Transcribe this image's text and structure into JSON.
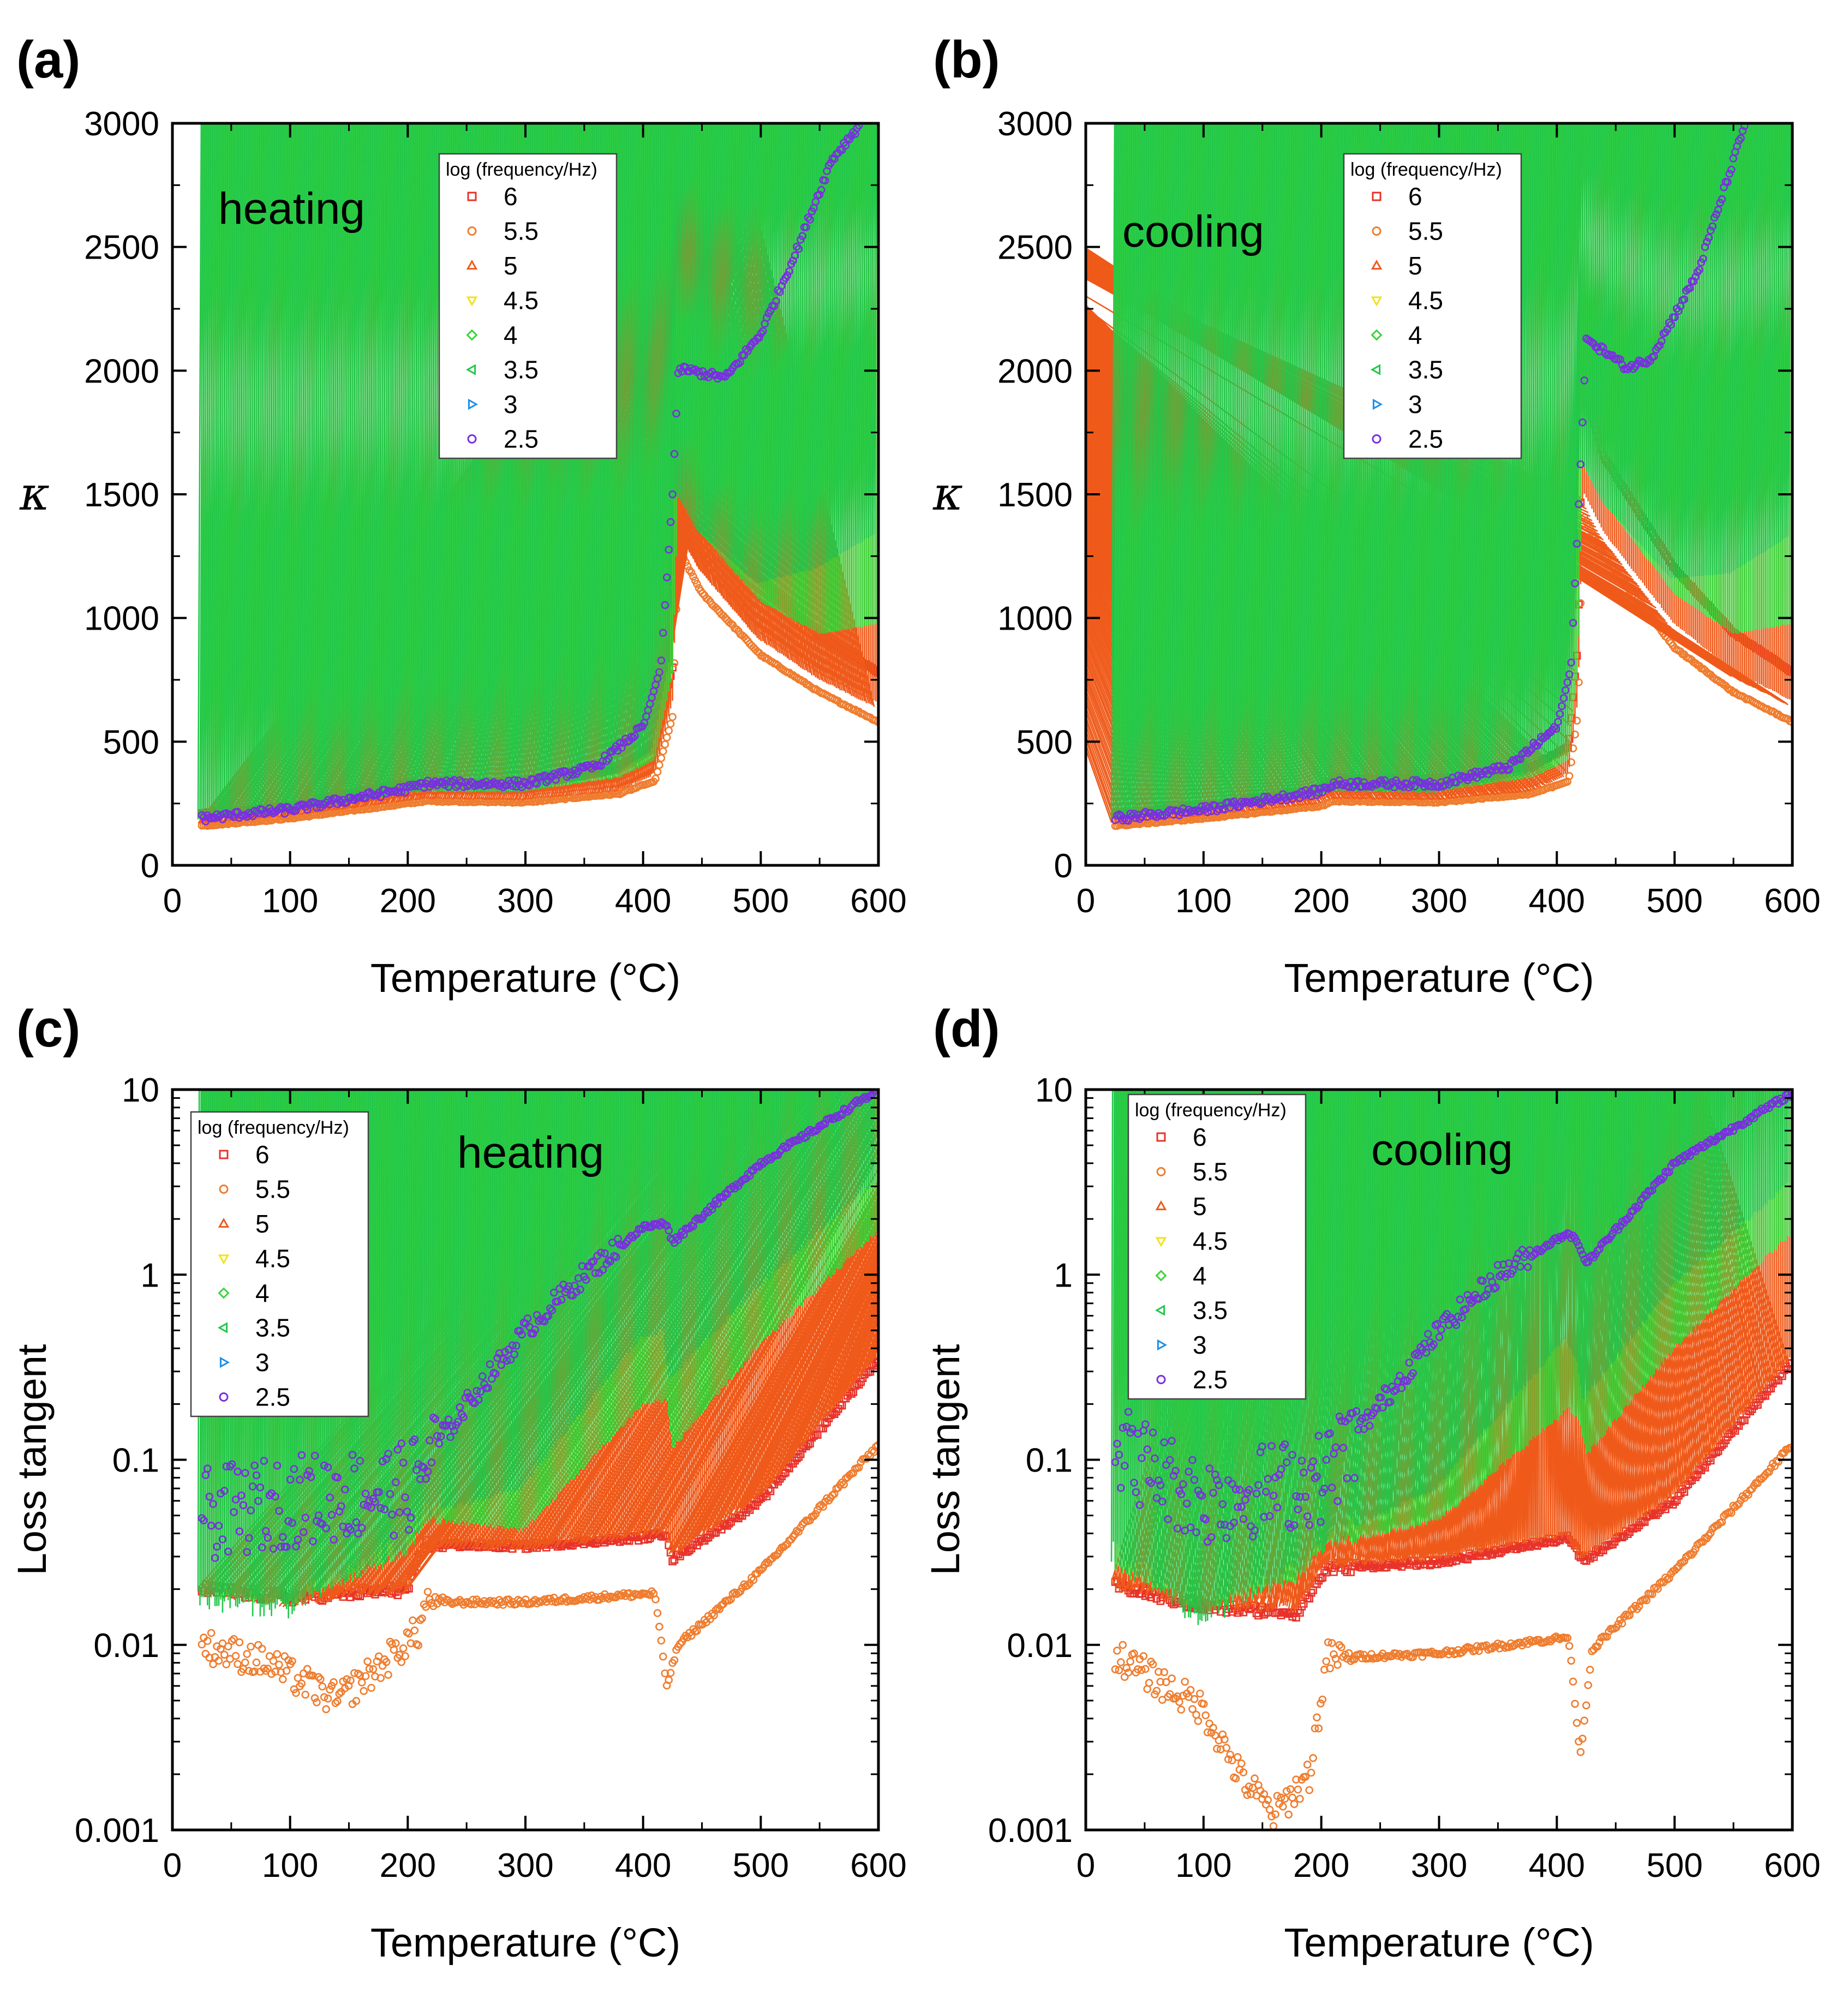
{
  "legend": {
    "title": "log (frequency/Hz)",
    "entries": [
      {
        "label": "6",
        "color": "#e8332a",
        "marker": "square"
      },
      {
        "label": "5.5",
        "color": "#ef7d2f",
        "marker": "circle"
      },
      {
        "label": "5",
        "color": "#ef5a1a",
        "marker": "triangle-up"
      },
      {
        "label": "4.5",
        "color": "#f2e21a",
        "marker": "triangle-down"
      },
      {
        "label": "4",
        "color": "#3ad43a",
        "marker": "diamond"
      },
      {
        "label": "3.5",
        "color": "#22c74a",
        "marker": "triangle-left"
      },
      {
        "label": "3",
        "color": "#1b8fe8",
        "marker": "triangle-right"
      },
      {
        "label": "2.5",
        "color": "#7a2fe0",
        "marker": "circle"
      }
    ]
  },
  "chart_data": [
    {
      "id": "a",
      "panel_label": "(a)",
      "type": "scatter",
      "annotation": "heating",
      "xlabel": "Temperature (°C)",
      "ylabel": "κ",
      "yscale": "linear",
      "xlim": [
        0,
        600
      ],
      "ylim": [
        0,
        3000
      ],
      "xticks": [
        "0",
        "100",
        "200",
        "300",
        "400",
        "500",
        "600"
      ],
      "yticks": [
        "0",
        "500",
        "1000",
        "1500",
        "2000",
        "2500",
        "3000"
      ],
      "series": [
        {
          "name": "6",
          "x": [
            25,
            100,
            200,
            215,
            300,
            380,
            410,
            425,
            430,
            450,
            500,
            550,
            600
          ],
          "y": [
            210,
            240,
            340,
            330,
            340,
            400,
            480,
            800,
            1730,
            1500,
            1150,
            930,
            780
          ]
        },
        {
          "name": "5.5",
          "x": [
            25,
            100,
            200,
            215,
            300,
            380,
            410,
            425,
            430,
            450,
            500,
            550,
            600
          ],
          "y": [
            160,
            190,
            250,
            260,
            255,
            290,
            340,
            600,
            1280,
            1100,
            850,
            700,
            580
          ]
        },
        {
          "name": "5",
          "x": [
            25,
            100,
            200,
            215,
            300,
            380,
            410,
            425,
            430,
            450,
            500,
            550,
            600
          ],
          "y": [
            170,
            200,
            260,
            270,
            265,
            300,
            360,
            650,
            1380,
            1200,
            920,
            760,
            640
          ]
        },
        {
          "name": "4.5",
          "x": [
            25,
            100,
            200,
            215,
            300,
            380,
            410,
            425,
            430,
            450,
            500,
            550,
            600
          ],
          "y": [
            175,
            205,
            270,
            280,
            275,
            320,
            380,
            700,
            1440,
            1280,
            1000,
            840,
            740
          ]
        },
        {
          "name": "4",
          "x": [
            25,
            100,
            200,
            215,
            300,
            380,
            410,
            425,
            430,
            450,
            500,
            550,
            600
          ],
          "y": [
            180,
            210,
            280,
            290,
            285,
            340,
            410,
            760,
            1500,
            1320,
            1050,
            920,
            960
          ]
        },
        {
          "name": "3.5",
          "x": [
            25,
            100,
            200,
            215,
            300,
            380,
            410,
            425,
            430,
            450,
            500,
            550,
            600
          ],
          "y": [
            185,
            215,
            290,
            300,
            295,
            370,
            460,
            820,
            1510,
            1350,
            1140,
            1200,
            1340
          ]
        },
        {
          "name": "3",
          "x": [
            25,
            100,
            200,
            215,
            300,
            380,
            410,
            425,
            430,
            450,
            480,
            520,
            560,
            600
          ],
          "y": [
            190,
            220,
            300,
            310,
            305,
            420,
            560,
            900,
            1660,
            1520,
            1460,
            1560,
            1780,
            2070
          ]
        },
        {
          "name": "2.5",
          "x": [
            25,
            100,
            200,
            215,
            300,
            360,
            400,
            415,
            425,
            430,
            450,
            470,
            500,
            530,
            560,
            585
          ],
          "y": [
            190,
            225,
            310,
            330,
            330,
            400,
            560,
            800,
            1500,
            2010,
            1990,
            1970,
            2150,
            2480,
            2850,
            3000
          ]
        }
      ]
    },
    {
      "id": "b",
      "panel_label": "(b)",
      "type": "scatter",
      "annotation": "cooling",
      "xlabel": "Temperature (°C)",
      "ylabel": "κ",
      "yscale": "linear",
      "xlim": [
        0,
        600
      ],
      "ylim": [
        0,
        3000
      ],
      "xticks": [
        "0",
        "100",
        "200",
        "300",
        "400",
        "500",
        "600"
      ],
      "yticks": [
        "0",
        "500",
        "1000",
        "1500",
        "2000",
        "2500",
        "3000"
      ],
      "series": [
        {
          "name": "6",
          "x": [
            25,
            100,
            200,
            210,
            300,
            380,
            410,
            418,
            422,
            440,
            500,
            550,
            600
          ],
          "y": [
            210,
            240,
            310,
            350,
            350,
            400,
            480,
            900,
            1930,
            1650,
            1200,
            940,
            780
          ]
        },
        {
          "name": "5.5",
          "x": [
            25,
            100,
            200,
            210,
            300,
            380,
            410,
            418,
            422,
            440,
            500,
            550,
            600
          ],
          "y": [
            160,
            190,
            240,
            260,
            255,
            290,
            340,
            620,
            1420,
            1250,
            880,
            700,
            580
          ]
        },
        {
          "name": "5",
          "x": [
            25,
            100,
            200,
            210,
            300,
            380,
            410,
            418,
            422,
            440,
            500,
            550,
            600
          ],
          "y": [
            170,
            200,
            250,
            270,
            265,
            300,
            360,
            660,
            1500,
            1330,
            960,
            770,
            650
          ]
        },
        {
          "name": "4.5",
          "x": [
            25,
            100,
            200,
            210,
            300,
            380,
            410,
            418,
            422,
            440,
            500,
            550,
            600
          ],
          "y": [
            175,
            205,
            260,
            280,
            275,
            320,
            380,
            720,
            1560,
            1400,
            1030,
            850,
            740
          ]
        },
        {
          "name": "4",
          "x": [
            25,
            100,
            200,
            210,
            300,
            380,
            410,
            418,
            422,
            440,
            500,
            550,
            600
          ],
          "y": [
            180,
            210,
            270,
            290,
            285,
            340,
            410,
            780,
            1640,
            1450,
            1080,
            920,
            960
          ]
        },
        {
          "name": "3.5",
          "x": [
            25,
            100,
            200,
            210,
            300,
            380,
            410,
            418,
            422,
            440,
            500,
            550,
            600
          ],
          "y": [
            185,
            215,
            280,
            300,
            295,
            370,
            460,
            840,
            1650,
            1480,
            1160,
            1180,
            1330
          ]
        },
        {
          "name": "3",
          "x": [
            25,
            100,
            200,
            210,
            300,
            380,
            410,
            418,
            422,
            440,
            480,
            520,
            560,
            600
          ],
          "y": [
            190,
            220,
            290,
            310,
            305,
            420,
            560,
            920,
            1800,
            1600,
            1490,
            1560,
            1760,
            2060
          ]
        },
        {
          "name": "2.5",
          "x": [
            25,
            100,
            200,
            210,
            300,
            360,
            400,
            412,
            420,
            425,
            440,
            460,
            480,
            520,
            560
          ],
          "y": [
            190,
            225,
            300,
            330,
            330,
            400,
            560,
            800,
            1600,
            2130,
            2080,
            2010,
            2050,
            2400,
            3000
          ]
        }
      ]
    },
    {
      "id": "c",
      "panel_label": "(c)",
      "type": "scatter",
      "annotation": "heating",
      "xlabel": "Temperature (°C)",
      "ylabel": "Loss tangent",
      "yscale": "log",
      "xlim": [
        0,
        600
      ],
      "ylim": [
        0.001,
        10
      ],
      "xticks": [
        "0",
        "100",
        "200",
        "300",
        "400",
        "500",
        "600"
      ],
      "yticks": [
        "0.001",
        "0.01",
        "0.1",
        "1",
        "10"
      ],
      "series": [
        {
          "name": "6",
          "x": [
            25,
            100,
            200,
            215,
            300,
            400,
            420,
            425,
            500,
            600
          ],
          "y": [
            0.02,
            0.018,
            0.02,
            0.035,
            0.034,
            0.038,
            0.04,
            0.029,
            0.06,
            0.35
          ]
        },
        {
          "name": "5.5",
          "x": [
            25,
            80,
            140,
            180,
            210,
            215,
            300,
            410,
            420,
            430,
            500,
            600
          ],
          "y": [
            0.01,
            0.008,
            0.005,
            0.008,
            0.012,
            0.017,
            0.017,
            0.019,
            0.006,
            0.01,
            0.025,
            0.12
          ]
        },
        {
          "name": "5",
          "x": [
            25,
            100,
            200,
            215,
            300,
            400,
            420,
            425,
            500,
            600
          ],
          "y": [
            0.02,
            0.017,
            0.02,
            0.034,
            0.033,
            0.039,
            0.04,
            0.03,
            0.062,
            0.36
          ]
        },
        {
          "name": "4.5",
          "x": [
            25,
            100,
            200,
            215,
            300,
            400,
            420,
            425,
            500,
            600
          ],
          "y": [
            0.019,
            0.016,
            0.025,
            0.04,
            0.034,
            0.08,
            0.085,
            0.05,
            0.15,
            0.83
          ]
        },
        {
          "name": "4",
          "x": [
            25,
            100,
            200,
            215,
            300,
            400,
            420,
            425,
            500,
            600
          ],
          "y": [
            0.018,
            0.016,
            0.03,
            0.045,
            0.04,
            0.19,
            0.2,
            0.11,
            0.4,
            1.65
          ]
        },
        {
          "name": "3.5",
          "x": [
            25,
            100,
            200,
            215,
            300,
            400,
            420,
            425,
            500,
            600
          ],
          "y": [
            0.018,
            0.016,
            0.035,
            0.05,
            0.07,
            0.45,
            0.5,
            0.27,
            0.85,
            3.2
          ]
        },
        {
          "name": "3",
          "x": [
            25,
            100,
            200,
            250,
            300,
            350,
            400,
            420,
            425,
            500,
            600
          ],
          "y": [
            0.02,
            0.02,
            0.04,
            0.08,
            0.2,
            0.5,
            0.95,
            1.0,
            0.65,
            2.0,
            6.0
          ]
        },
        {
          "name": "2.5",
          "x": [
            25,
            100,
            200,
            250,
            300,
            350,
            400,
            420,
            425,
            500,
            600
          ],
          "y": [
            0.05,
            0.06,
            0.07,
            0.2,
            0.5,
            1.0,
            1.8,
            1.9,
            1.5,
            4.0,
            10.0
          ]
        }
      ]
    },
    {
      "id": "d",
      "panel_label": "(d)",
      "type": "scatter",
      "annotation": "cooling",
      "xlabel": "Temperature (°C)",
      "ylabel": "Loss tangent",
      "yscale": "log",
      "xlim": [
        0,
        600
      ],
      "ylim": [
        0.001,
        10
      ],
      "xticks": [
        "0",
        "100",
        "200",
        "300",
        "400",
        "500",
        "600"
      ],
      "yticks": [
        "0.001",
        "0.01",
        "0.1",
        "1",
        "10"
      ],
      "series": [
        {
          "name": "6",
          "x": [
            25,
            100,
            180,
            205,
            300,
            410,
            420,
            425,
            500,
            600
          ],
          "y": [
            0.021,
            0.016,
            0.015,
            0.026,
            0.028,
            0.038,
            0.03,
            0.029,
            0.06,
            0.34
          ]
        },
        {
          "name": "5.5",
          "x": [
            25,
            100,
            130,
            160,
            190,
            205,
            300,
            410,
            420,
            430,
            500,
            600
          ],
          "y": [
            0.0088,
            0.0045,
            0.002,
            0.0012,
            0.002,
            0.0085,
            0.009,
            0.011,
            0.0025,
            0.0095,
            0.025,
            0.12
          ]
        },
        {
          "name": "5",
          "x": [
            25,
            100,
            180,
            205,
            300,
            410,
            420,
            425,
            500,
            600
          ],
          "y": [
            0.021,
            0.016,
            0.016,
            0.027,
            0.029,
            0.039,
            0.031,
            0.03,
            0.062,
            0.35
          ]
        },
        {
          "name": "4.5",
          "x": [
            25,
            100,
            180,
            205,
            300,
            410,
            420,
            425,
            500,
            600
          ],
          "y": [
            0.022,
            0.015,
            0.018,
            0.03,
            0.035,
            0.07,
            0.06,
            0.05,
            0.15,
            0.82
          ]
        },
        {
          "name": "4",
          "x": [
            25,
            100,
            180,
            205,
            300,
            410,
            420,
            425,
            500,
            600
          ],
          "y": [
            0.025,
            0.015,
            0.022,
            0.033,
            0.045,
            0.18,
            0.15,
            0.1,
            0.38,
            1.62
          ]
        },
        {
          "name": "3.5",
          "x": [
            25,
            100,
            180,
            205,
            300,
            410,
            420,
            425,
            500,
            600
          ],
          "y": [
            0.033,
            0.014,
            0.025,
            0.036,
            0.07,
            0.45,
            0.35,
            0.21,
            0.85,
            3.1
          ]
        },
        {
          "name": "3",
          "x": [
            25,
            100,
            200,
            250,
            300,
            350,
            410,
            420,
            425,
            500,
            600
          ],
          "y": [
            0.05,
            0.02,
            0.035,
            0.07,
            0.2,
            0.5,
            0.9,
            0.7,
            0.55,
            2.0,
            6.0
          ]
        },
        {
          "name": "2.5",
          "x": [
            25,
            100,
            200,
            250,
            300,
            350,
            410,
            420,
            425,
            500,
            600
          ],
          "y": [
            0.12,
            0.06,
            0.08,
            0.2,
            0.5,
            1.0,
            1.7,
            1.4,
            1.15,
            4.0,
            9.6
          ]
        }
      ]
    }
  ]
}
